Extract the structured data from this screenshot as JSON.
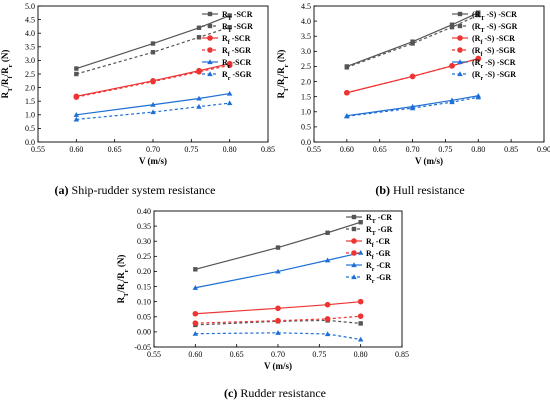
{
  "captions": [
    {
      "tag": "(a)",
      "text": "Ship-rudder system resistance"
    },
    {
      "tag": "(b)",
      "text": "Hull resistance"
    },
    {
      "tag": "(c)",
      "text": "Rudder resistance"
    }
  ],
  "chart_data": [
    {
      "type": "line",
      "xlabel": "V (m/s)",
      "ylabel": "R_T/R_f/R_r (N)",
      "xlim": [
        0.55,
        0.85
      ],
      "ylim": [
        0.0,
        5.0
      ],
      "xticks": [
        "0.55",
        "0.60",
        "0.65",
        "0.70",
        "0.75",
        "0.80",
        "0.85"
      ],
      "yticks": [
        "0.0",
        "0.5",
        "1.0",
        "1.5",
        "2.0",
        "2.5",
        "3.0",
        "3.5",
        "4.0",
        "4.5",
        "5.0"
      ],
      "legend_position": "top-right",
      "x": [
        0.6,
        0.7,
        0.76,
        0.8
      ],
      "series": [
        {
          "name_main": "R",
          "name_sub": "T",
          "name_rest": " -SCR",
          "color": "#555555",
          "dash": false,
          "marker": "square",
          "values": [
            2.7,
            3.62,
            4.2,
            4.65
          ]
        },
        {
          "name_main": "R",
          "name_sub": "T",
          "name_rest": " -SGR",
          "color": "#555555",
          "dash": true,
          "marker": "square",
          "values": [
            2.5,
            3.3,
            3.85,
            4.22
          ]
        },
        {
          "name_main": "R",
          "name_sub": "f",
          "name_rest": " -SCR",
          "color": "#ee3333",
          "dash": false,
          "marker": "circle",
          "values": [
            1.68,
            2.25,
            2.62,
            2.88
          ]
        },
        {
          "name_main": "R",
          "name_sub": "f",
          "name_rest": " -SGR",
          "color": "#ee3333",
          "dash": true,
          "marker": "circle",
          "values": [
            1.65,
            2.22,
            2.58,
            2.82
          ]
        },
        {
          "name_main": "R",
          "name_sub": "r",
          "name_rest": " -SCR",
          "color": "#1f6fd6",
          "dash": false,
          "marker": "triangle",
          "values": [
            1.0,
            1.37,
            1.6,
            1.78
          ]
        },
        {
          "name_main": "R",
          "name_sub": "r",
          "name_rest": " -SGR",
          "color": "#1f6fd6",
          "dash": true,
          "marker": "triangle",
          "values": [
            0.83,
            1.1,
            1.3,
            1.43
          ]
        }
      ]
    },
    {
      "type": "line",
      "xlabel": "V (m/s)",
      "ylabel": "R_T/R_f/R_r (N)",
      "xlim": [
        0.55,
        0.9
      ],
      "ylim": [
        0.0,
        4.5
      ],
      "xticks": [
        "0.55",
        "0.60",
        "0.65",
        "0.70",
        "0.75",
        "0.80",
        "0.85",
        "0.90"
      ],
      "yticks": [
        "0.0",
        "0.5",
        "1.0",
        "1.5",
        "2.0",
        "2.5",
        "3.0",
        "3.5",
        "4.0",
        "4.5"
      ],
      "legend_position": "top-right",
      "x": [
        0.6,
        0.7,
        0.76,
        0.8
      ],
      "series": [
        {
          "name_main": "(R",
          "name_sub": "T",
          "name_rest": " -S) -SCR",
          "color": "#555555",
          "dash": false,
          "marker": "square",
          "values": [
            2.5,
            3.32,
            3.88,
            4.28
          ]
        },
        {
          "name_main": "(R",
          "name_sub": "T",
          "name_rest": " -S) -SGR",
          "color": "#555555",
          "dash": true,
          "marker": "square",
          "values": [
            2.47,
            3.26,
            3.8,
            4.2
          ]
        },
        {
          "name_main": "(R",
          "name_sub": "f",
          "name_rest": " -S) -SCR",
          "color": "#ee3333",
          "dash": false,
          "marker": "circle",
          "values": [
            1.63,
            2.17,
            2.52,
            2.76
          ]
        },
        {
          "name_main": "(R",
          "name_sub": "f",
          "name_rest": " -S) -SGR",
          "color": "#ee3333",
          "dash": true,
          "marker": "circle",
          "values": [
            1.63,
            2.17,
            2.52,
            2.76
          ]
        },
        {
          "name_main": "(R",
          "name_sub": "r",
          "name_rest": " -S) -SCR",
          "color": "#1f6fd6",
          "dash": false,
          "marker": "triangle",
          "values": [
            0.87,
            1.17,
            1.38,
            1.53
          ]
        },
        {
          "name_main": "(R",
          "name_sub": "r",
          "name_rest": " -S) -SGR",
          "color": "#1f6fd6",
          "dash": true,
          "marker": "triangle",
          "values": [
            0.85,
            1.12,
            1.32,
            1.48
          ]
        }
      ]
    },
    {
      "type": "line",
      "xlabel": "V (m/s)",
      "ylabel": "R_T/R_f/R_r (N)",
      "xlim": [
        0.55,
        0.85
      ],
      "ylim": [
        -0.05,
        0.4
      ],
      "xticks": [
        "0.55",
        "0.60",
        "0.65",
        "0.70",
        "0.75",
        "0.80",
        "0.85"
      ],
      "yticks": [
        "-0.05",
        "0.00",
        "0.05",
        "0.10",
        "0.15",
        "0.20",
        "0.25",
        "0.30",
        "0.35",
        "0.40"
      ],
      "legend_position": "top-right",
      "x": [
        0.6,
        0.7,
        0.76,
        0.8
      ],
      "series": [
        {
          "name_main": "R",
          "name_sub": "T",
          "name_rest": " -CR",
          "color": "#555555",
          "dash": false,
          "marker": "square",
          "values": [
            0.207,
            0.279,
            0.328,
            0.363
          ]
        },
        {
          "name_main": "R",
          "name_sub": "T",
          "name_rest": " -GR",
          "color": "#555555",
          "dash": true,
          "marker": "square",
          "values": [
            0.023,
            0.035,
            0.038,
            0.028
          ]
        },
        {
          "name_main": "R",
          "name_sub": "f",
          "name_rest": " -CR",
          "color": "#ee3333",
          "dash": false,
          "marker": "circle",
          "values": [
            0.06,
            0.078,
            0.09,
            0.1
          ]
        },
        {
          "name_main": "R",
          "name_sub": "f",
          "name_rest": " -GR",
          "color": "#ee3333",
          "dash": true,
          "marker": "circle",
          "values": [
            0.029,
            0.037,
            0.043,
            0.052
          ]
        },
        {
          "name_main": "R",
          "name_sub": "r",
          "name_rest": " -CR",
          "color": "#1f6fd6",
          "dash": false,
          "marker": "triangle",
          "values": [
            0.146,
            0.2,
            0.237,
            0.262
          ]
        },
        {
          "name_main": "R",
          "name_sub": "r",
          "name_rest": " -GR",
          "color": "#1f6fd6",
          "dash": true,
          "marker": "triangle",
          "values": [
            -0.006,
            -0.003,
            -0.007,
            -0.025
          ]
        }
      ]
    }
  ]
}
